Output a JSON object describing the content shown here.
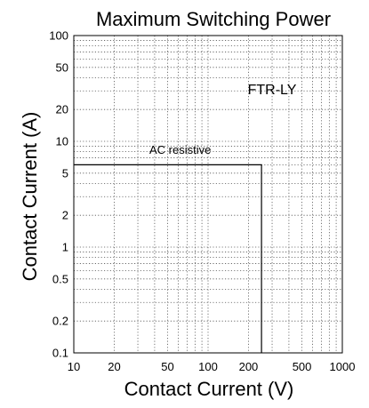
{
  "chart_data": {
    "type": "line",
    "title": "Maximum Switching Power",
    "xlabel": "Contact Current (V)",
    "ylabel": "Contact Current (A)",
    "xscale": "log",
    "yscale": "log",
    "xlim": [
      10,
      1000
    ],
    "ylim": [
      0.1,
      100
    ],
    "grid": true,
    "x_tick_labels": [
      {
        "value": 10,
        "label": "10"
      },
      {
        "value": 20,
        "label": "20"
      },
      {
        "value": 50,
        "label": "50"
      },
      {
        "value": 100,
        "label": "100"
      },
      {
        "value": 200,
        "label": "200"
      },
      {
        "value": 500,
        "label": "500"
      },
      {
        "value": 1000,
        "label": "1000"
      }
    ],
    "y_tick_labels": [
      {
        "value": 0.1,
        "label": "0.1"
      },
      {
        "value": 0.2,
        "label": "0.2"
      },
      {
        "value": 0.5,
        "label": "0.5"
      },
      {
        "value": 1,
        "label": "1"
      },
      {
        "value": 2,
        "label": "2"
      },
      {
        "value": 5,
        "label": "5"
      },
      {
        "value": 10,
        "label": "10"
      },
      {
        "value": 20,
        "label": "20"
      },
      {
        "value": 50,
        "label": "50"
      },
      {
        "value": 100,
        "label": "100"
      }
    ],
    "series": [
      {
        "name": "AC resistive",
        "color": "#000000",
        "x": [
          10,
          250,
          250
        ],
        "y": [
          6,
          6,
          0.1
        ]
      }
    ],
    "annotations": [
      {
        "text": "FTR-LY",
        "x": 300,
        "y": 28
      },
      {
        "text": "AC resistive",
        "x": 62,
        "y": 7.6
      }
    ]
  }
}
